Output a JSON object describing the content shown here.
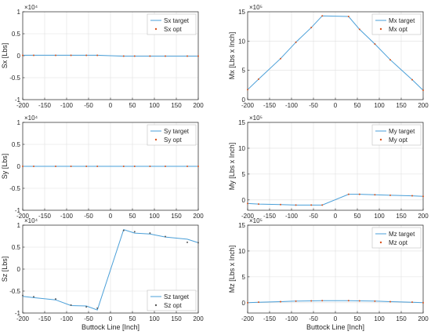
{
  "figure": {
    "xlabel_bottom": "Buttock Line [Inch]"
  },
  "chart_data": [
    {
      "id": "sx",
      "type": "line",
      "ylabel": "Sx [Lbs]",
      "exponent": "×10⁴",
      "ylim": [
        -1,
        1
      ],
      "yticks": [
        -1,
        -0.5,
        0,
        0.5,
        1
      ],
      "ytick_labels": [
        "-1",
        "-0.5",
        "0",
        "0.5",
        "1"
      ],
      "xlim": [
        -200,
        200
      ],
      "xticks": [
        -200,
        -150,
        -100,
        -50,
        0,
        50,
        100,
        150,
        200
      ],
      "xtick_labels": [
        "-200",
        "-150",
        "-100",
        "-50",
        "0",
        "50",
        "100",
        "150",
        "200"
      ],
      "xlabel": "",
      "legend_position": "top-right",
      "series": [
        {
          "name": "Sx target",
          "style": "line",
          "color": "#4a9fd8",
          "x": [
            -200,
            -175,
            -125,
            -90,
            -55,
            -30,
            30,
            55,
            90,
            125,
            175,
            200
          ],
          "y": [
            0.01,
            0.01,
            0.01,
            0.01,
            0.01,
            0.01,
            -0.01,
            -0.01,
            -0.01,
            -0.01,
            -0.01,
            -0.01
          ]
        },
        {
          "name": "Sx opt",
          "style": "points",
          "color": "#d9541e",
          "x": [
            -200,
            -175,
            -125,
            -90,
            -55,
            -30,
            30,
            55,
            90,
            125,
            175,
            200
          ],
          "y": [
            0.01,
            0.01,
            0.01,
            0.01,
            0.01,
            0.01,
            -0.01,
            -0.01,
            -0.01,
            -0.01,
            -0.01,
            -0.01
          ]
        }
      ]
    },
    {
      "id": "mx",
      "type": "line",
      "ylabel": "Mx [Lbs x Inch]",
      "exponent": "×10⁵",
      "ylim": [
        0,
        15
      ],
      "yticks": [
        0,
        5,
        10,
        15
      ],
      "ytick_labels": [
        "0",
        "5",
        "10",
        "15"
      ],
      "xlim": [
        -200,
        200
      ],
      "xticks": [
        -200,
        -150,
        -100,
        -50,
        0,
        50,
        100,
        150,
        200
      ],
      "xtick_labels": [
        "-200",
        "-150",
        "-100",
        "-50",
        "0",
        "50",
        "100",
        "150",
        "200"
      ],
      "xlabel": "",
      "legend_position": "top-right",
      "series": [
        {
          "name": "Mx target",
          "style": "line",
          "color": "#4a9fd8",
          "x": [
            -200,
            -175,
            -125,
            -90,
            -55,
            -30,
            30,
            55,
            90,
            125,
            175,
            200
          ],
          "y": [
            1.7,
            3.5,
            7.0,
            9.8,
            12.3,
            14.3,
            14.2,
            12.0,
            9.5,
            6.8,
            3.4,
            1.6
          ]
        },
        {
          "name": "Mx opt",
          "style": "points",
          "color": "#d9541e",
          "x": [
            -200,
            -175,
            -125,
            -90,
            -55,
            -30,
            30,
            55,
            90,
            125,
            175,
            200
          ],
          "y": [
            1.7,
            3.5,
            7.0,
            9.8,
            12.3,
            14.3,
            14.2,
            12.0,
            9.5,
            6.8,
            3.4,
            1.6
          ]
        }
      ]
    },
    {
      "id": "sy",
      "type": "line",
      "ylabel": "Sy [Lbs]",
      "exponent": "×10⁴",
      "ylim": [
        -1,
        1
      ],
      "yticks": [
        -1,
        -0.5,
        0,
        0.5,
        1
      ],
      "ytick_labels": [
        "-1",
        "-0.5",
        "0",
        "0.5",
        "1"
      ],
      "xlim": [
        -200,
        200
      ],
      "xticks": [
        -200,
        -150,
        -100,
        -50,
        0,
        50,
        100,
        150,
        200
      ],
      "xtick_labels": [
        "-200",
        "-150",
        "-100",
        "-50",
        "0",
        "50",
        "100",
        "150",
        "200"
      ],
      "xlabel": "",
      "legend_position": "top-right",
      "series": [
        {
          "name": "Sy target",
          "style": "line",
          "color": "#4a9fd8",
          "x": [
            -200,
            -175,
            -125,
            -90,
            -55,
            -30,
            30,
            55,
            90,
            125,
            175,
            200
          ],
          "y": [
            0,
            0,
            0,
            0,
            0,
            0,
            0,
            0,
            0,
            0,
            0,
            0
          ]
        },
        {
          "name": "Sy opt",
          "style": "points",
          "color": "#d9541e",
          "x": [
            -200,
            -175,
            -125,
            -90,
            -55,
            -30,
            30,
            55,
            90,
            125,
            175,
            200
          ],
          "y": [
            0,
            0,
            0,
            0,
            0,
            0,
            0,
            0,
            0,
            0,
            0,
            0
          ]
        }
      ]
    },
    {
      "id": "my",
      "type": "line",
      "ylabel": "My [Lbs x Inch]",
      "exponent": "×10⁵",
      "ylim": [
        -2,
        15
      ],
      "yticks": [
        0,
        5,
        10,
        15
      ],
      "ytick_labels": [
        "0",
        "5",
        "10",
        "15"
      ],
      "xlim": [
        -200,
        200
      ],
      "xticks": [
        -200,
        -150,
        -100,
        -50,
        0,
        50,
        100,
        150,
        200
      ],
      "xtick_labels": [
        "-200",
        "-150",
        "-100",
        "-50",
        "0",
        "50",
        "100",
        "150",
        "200"
      ],
      "xlabel": "",
      "legend_position": "top-right",
      "series": [
        {
          "name": "My target",
          "style": "line",
          "color": "#4a9fd8",
          "x": [
            -200,
            -175,
            -125,
            -90,
            -55,
            -30,
            30,
            55,
            90,
            125,
            175,
            200
          ],
          "y": [
            -0.7,
            -0.8,
            -0.9,
            -1.0,
            -1.0,
            -1.0,
            1.1,
            1.1,
            1.0,
            0.9,
            0.8,
            0.7
          ]
        },
        {
          "name": "My opt",
          "style": "points",
          "color": "#d9541e",
          "x": [
            -200,
            -175,
            -125,
            -90,
            -55,
            -30,
            30,
            55,
            90,
            125,
            175,
            200
          ],
          "y": [
            -0.7,
            -0.8,
            -0.9,
            -1.0,
            -1.0,
            -1.0,
            1.1,
            1.1,
            1.0,
            0.9,
            0.8,
            0.7
          ]
        }
      ]
    },
    {
      "id": "sz",
      "type": "line",
      "ylabel": "Sz [Lbs]",
      "exponent": "×10⁴",
      "ylim": [
        -1,
        1
      ],
      "yticks": [
        -1,
        -0.5,
        0,
        0.5,
        1
      ],
      "ytick_labels": [
        "-1",
        "-0.5",
        "0",
        "0.5",
        "1"
      ],
      "xlim": [
        -200,
        200
      ],
      "xticks": [
        -200,
        -150,
        -100,
        -50,
        0,
        50,
        100,
        150,
        200
      ],
      "xtick_labels": [
        "-200",
        "-150",
        "-100",
        "-50",
        "0",
        "50",
        "100",
        "150",
        "200"
      ],
      "xlabel": "Buttock Line [Inch]",
      "legend_position": "bottom-right",
      "series": [
        {
          "name": "Sz target",
          "style": "line",
          "color": "#4a9fd8",
          "x": [
            -200,
            -175,
            -125,
            -90,
            -55,
            -30,
            30,
            55,
            90,
            125,
            175,
            200
          ],
          "y": [
            -0.62,
            -0.65,
            -0.7,
            -0.83,
            -0.84,
            -0.93,
            0.9,
            0.82,
            0.8,
            0.73,
            0.68,
            0.6
          ]
        },
        {
          "name": "Sz opt",
          "style": "points",
          "color": "#595959",
          "x": [
            -200,
            -175,
            -125,
            -90,
            -55,
            -30,
            30,
            55,
            90,
            125,
            175,
            200
          ],
          "y": [
            -0.6,
            -0.63,
            -0.68,
            -0.82,
            -0.86,
            -0.89,
            0.88,
            0.85,
            0.82,
            0.74,
            0.61,
            0.6
          ]
        }
      ]
    },
    {
      "id": "mz",
      "type": "line",
      "ylabel": "Mz [Lbs x Inch]",
      "exponent": "×10⁵",
      "ylim": [
        -2,
        15
      ],
      "yticks": [
        0,
        5,
        10,
        15
      ],
      "ytick_labels": [
        "0",
        "5",
        "10",
        "15"
      ],
      "xlim": [
        -200,
        200
      ],
      "xticks": [
        -200,
        -150,
        -100,
        -50,
        0,
        50,
        100,
        150,
        200
      ],
      "xtick_labels": [
        "-200",
        "-150",
        "-100",
        "-50",
        "0",
        "50",
        "100",
        "150",
        "200"
      ],
      "xlabel": "Buttock Line [Inch]",
      "legend_position": "top-right",
      "series": [
        {
          "name": "Mz target",
          "style": "line",
          "color": "#4a9fd8",
          "x": [
            -200,
            -175,
            -125,
            -90,
            -55,
            -30,
            30,
            55,
            90,
            125,
            175,
            200
          ],
          "y": [
            0.0,
            0.1,
            0.2,
            0.3,
            0.35,
            0.4,
            0.4,
            0.35,
            0.3,
            0.2,
            0.1,
            0.0
          ]
        },
        {
          "name": "Mz opt",
          "style": "points",
          "color": "#d9541e",
          "x": [
            -200,
            -175,
            -125,
            -90,
            -55,
            -30,
            30,
            55,
            90,
            125,
            175,
            200
          ],
          "y": [
            0.0,
            0.1,
            0.2,
            0.3,
            0.35,
            0.4,
            0.4,
            0.35,
            0.3,
            0.2,
            0.1,
            0.0
          ]
        }
      ]
    }
  ]
}
